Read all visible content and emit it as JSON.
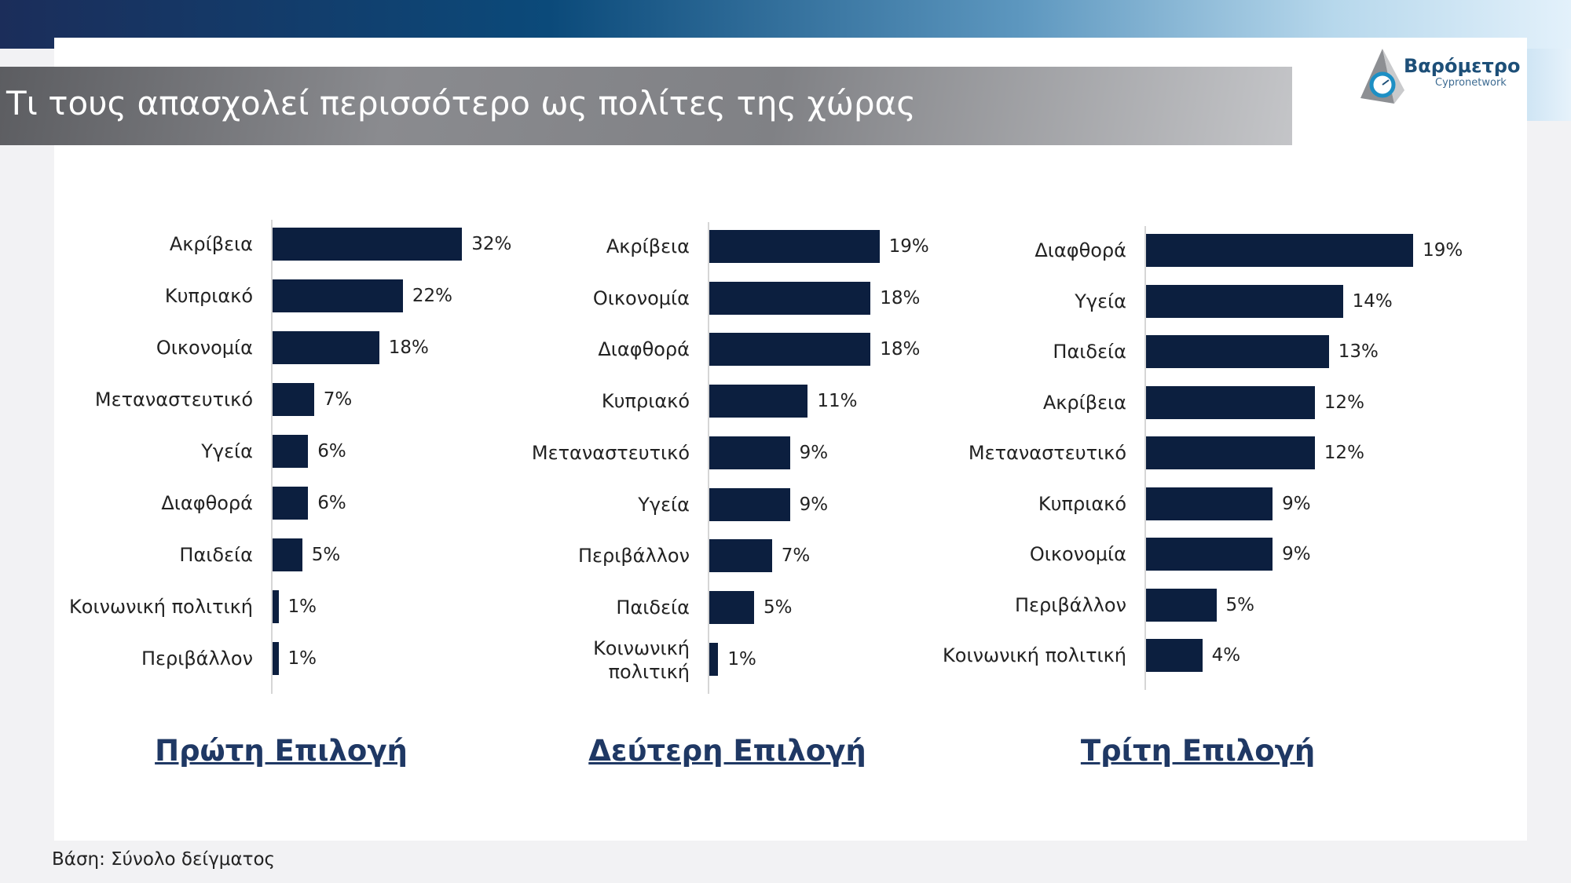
{
  "title": "Τι τους απασχολεί περισσότερο ως πολίτες της χώρας",
  "logo": {
    "name": "Βαρόμετρο",
    "sub": "Cypronetwork"
  },
  "footer": "Βάση: Σύνολο δείγματος",
  "colors": {
    "bar": "#0c1f3f",
    "section_title": "#1f3864"
  },
  "chart_data": [
    {
      "type": "bar",
      "orientation": "horizontal",
      "title": "Πρώτη Επιλογή",
      "categories": [
        "Ακρίβεια",
        "Κυπριακό",
        "Οικονομία",
        "Μεταναστευτικό",
        "Υγεία",
        "Διαφθορά",
        "Παιδεία",
        "Κοινωνική πολιτική",
        "Περιβάλλον"
      ],
      "values": [
        32,
        22,
        18,
        7,
        6,
        6,
        5,
        1,
        1
      ],
      "labels": [
        "32%",
        "22%",
        "18%",
        "7%",
        "6%",
        "6%",
        "5%",
        "1%",
        "1%"
      ]
    },
    {
      "type": "bar",
      "orientation": "horizontal",
      "title": "Δεύτερη Επιλογή",
      "categories": [
        "Ακρίβεια",
        "Οικονομία",
        "Διαφθορά",
        "Κυπριακό",
        "Μεταναστευτικό",
        "Υγεία",
        "Περιβάλλον",
        "Παιδεία",
        "Κοινωνική πολιτική"
      ],
      "values": [
        19,
        18,
        18,
        11,
        9,
        9,
        7,
        5,
        1
      ],
      "labels": [
        "19%",
        "18%",
        "18%",
        "11%",
        "9%",
        "9%",
        "7%",
        "5%",
        "1%"
      ]
    },
    {
      "type": "bar",
      "orientation": "horizontal",
      "title": "Τρίτη Επιλογή",
      "categories": [
        "Διαφθορά",
        "Υγεία",
        "Παιδεία",
        "Ακρίβεια",
        "Μεταναστευτικό",
        "Κυπριακό",
        "Οικονομία",
        "Περιβάλλον",
        "Κοινωνική πολιτική"
      ],
      "values": [
        19,
        14,
        13,
        12,
        12,
        9,
        9,
        5,
        4
      ],
      "labels": [
        "19%",
        "14%",
        "13%",
        "12%",
        "12%",
        "9%",
        "9%",
        "5%",
        "4%"
      ]
    }
  ]
}
